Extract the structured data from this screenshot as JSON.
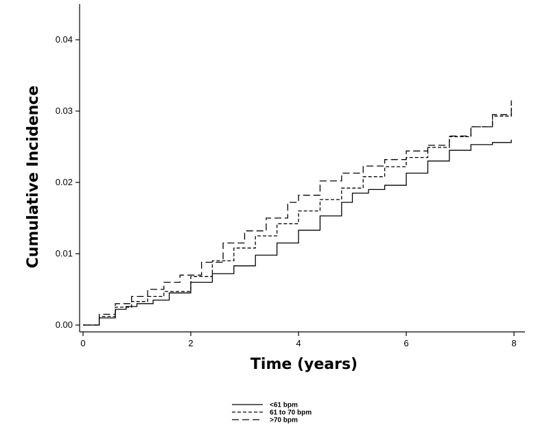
{
  "chart_data": {
    "type": "line",
    "title": "",
    "xlabel": "Time (years)",
    "ylabel": "Cumulative Incidence",
    "xlim": [
      0,
      8.5
    ],
    "ylim": [
      0,
      0.045
    ],
    "x_ticks": [
      0,
      2,
      4,
      6,
      8
    ],
    "x_tick_labels": [
      "0",
      "2",
      "4",
      "6",
      "8"
    ],
    "y_ticks": [
      0,
      0.01,
      0.02,
      0.03,
      0.04
    ],
    "y_tick_labels": [
      "0.00",
      "0.01",
      "0.02",
      "0.03",
      "0.04"
    ],
    "grid": false,
    "legend_position": "bottom-center",
    "series": [
      {
        "name": "<61 bpm",
        "line_style": "solid",
        "x": [
          0,
          0.3,
          0.6,
          0.8,
          1.0,
          1.3,
          1.6,
          2.0,
          2.4,
          2.8,
          3.2,
          3.6,
          4.0,
          4.4,
          4.8,
          5.0,
          5.3,
          5.6,
          6.0,
          6.4,
          6.8,
          7.2,
          7.6,
          7.95
        ],
        "y": [
          0,
          0.001,
          0.0022,
          0.0026,
          0.003,
          0.0035,
          0.0045,
          0.006,
          0.0072,
          0.0083,
          0.0098,
          0.0115,
          0.0133,
          0.0153,
          0.0172,
          0.0185,
          0.019,
          0.0196,
          0.0213,
          0.023,
          0.0245,
          0.0253,
          0.0256,
          0.026
        ]
      },
      {
        "name": "61 to 70 bpm",
        "line_style": "short-dash",
        "x": [
          0,
          0.3,
          0.6,
          0.9,
          1.2,
          1.5,
          2.0,
          2.4,
          2.8,
          3.2,
          3.6,
          4.0,
          4.4,
          4.8,
          5.2,
          5.6,
          6.0,
          6.4,
          6.8,
          7.2,
          7.6,
          7.95
        ],
        "y": [
          0,
          0.0012,
          0.0025,
          0.0033,
          0.004,
          0.0047,
          0.0068,
          0.009,
          0.0108,
          0.0125,
          0.0142,
          0.016,
          0.0176,
          0.0192,
          0.0208,
          0.0222,
          0.0235,
          0.0249,
          0.0264,
          0.0278,
          0.0293,
          0.031
        ]
      },
      {
        "name": ">70 bpm",
        "line_style": "long-dash",
        "x": [
          0,
          0.3,
          0.6,
          0.9,
          1.2,
          1.5,
          1.8,
          2.2,
          2.6,
          3.0,
          3.4,
          3.8,
          4.0,
          4.4,
          4.8,
          5.2,
          5.6,
          6.0,
          6.4,
          6.8,
          7.2,
          7.6,
          7.95
        ],
        "y": [
          0,
          0.0015,
          0.003,
          0.004,
          0.005,
          0.006,
          0.007,
          0.0088,
          0.0115,
          0.0132,
          0.015,
          0.0172,
          0.0182,
          0.0202,
          0.0213,
          0.0223,
          0.0232,
          0.0244,
          0.0252,
          0.0265,
          0.0278,
          0.0295,
          0.0315
        ]
      }
    ]
  }
}
